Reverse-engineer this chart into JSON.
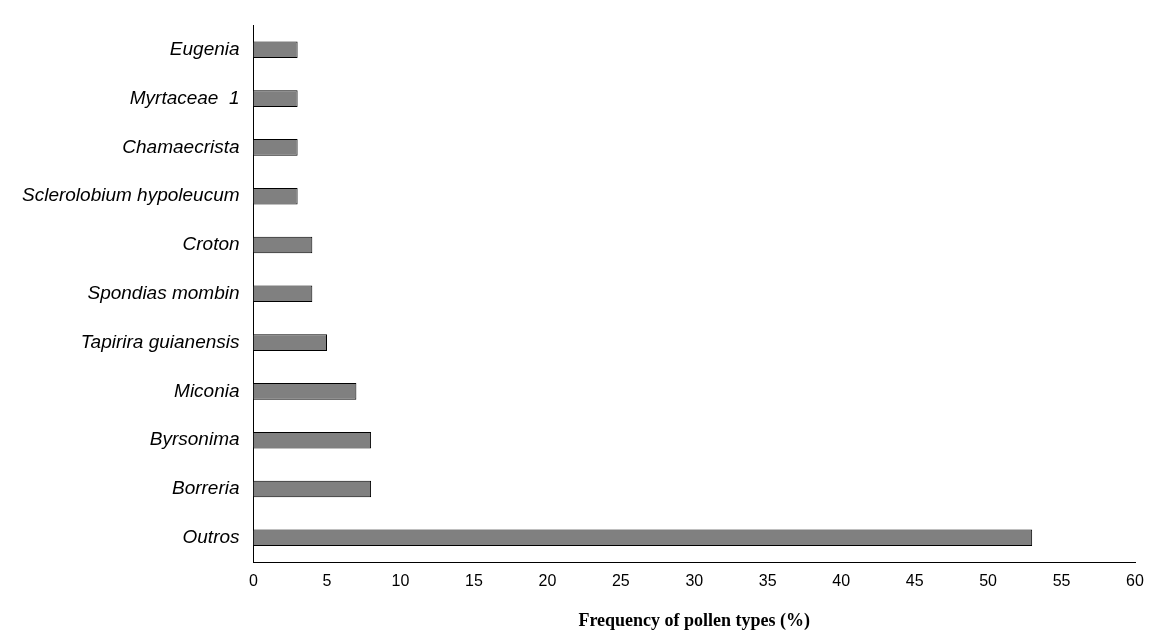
{
  "chart_data": {
    "type": "bar",
    "orientation": "horizontal",
    "xlabel": "Frequency of pollen types (%)",
    "categories": [
      "Eugenia",
      "Myrtaceae  1",
      "Chamaecrista",
      "Sclerolobium hypoleucum",
      "Croton",
      "Spondias mombin",
      "Tapirira guianensis",
      "Miconia",
      "Byrsonima",
      "Borreria",
      "Outros"
    ],
    "values": [
      3,
      3,
      3,
      3,
      4,
      4,
      5,
      7,
      8,
      8,
      53
    ],
    "color": "#808080",
    "xlim": [
      0,
      60
    ],
    "xticks": [
      0,
      5,
      10,
      15,
      20,
      25,
      30,
      35,
      40,
      45,
      50,
      55,
      60
    ],
    "grid": false,
    "legend": false
  }
}
